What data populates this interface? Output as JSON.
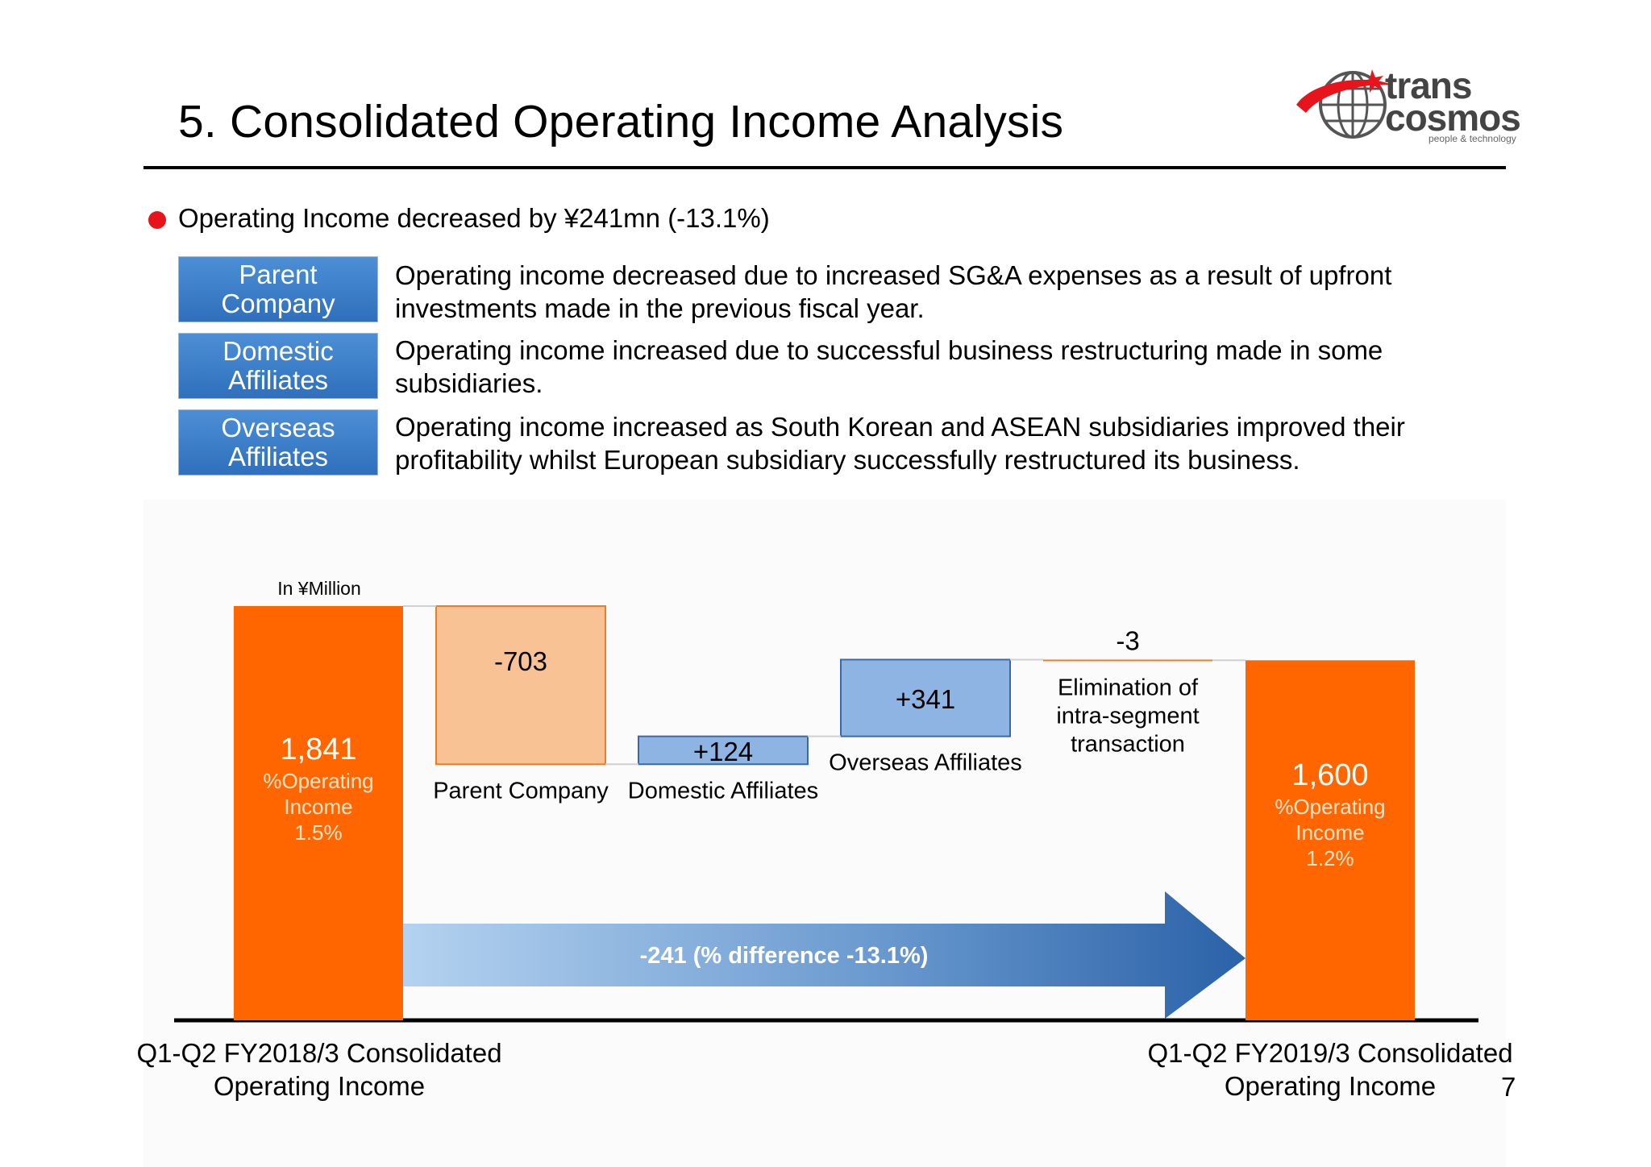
{
  "title": "5. Consolidated Operating Income Analysis",
  "logo": {
    "line1": "trans",
    "line2": "cosmos",
    "tagline": "people & technology"
  },
  "bullet": "Operating Income decreased by ¥241mn (-13.1%)",
  "segments": [
    {
      "label_line1": "Parent",
      "label_line2": "Company",
      "text": "Operating income decreased due to increased SG&A expenses as a result of upfront investments made in the previous fiscal year."
    },
    {
      "label_line1": "Domestic",
      "label_line2": "Affiliates",
      "text": "Operating income increased due to successful business restructuring made in some subsidiaries."
    },
    {
      "label_line1": "Overseas",
      "label_line2": "Affiliates",
      "text": "Operating income increased as South Korean and ASEAN subsidiaries improved their profitability whilst European subsidiary successfully restructured its business."
    }
  ],
  "colors": {
    "total": "#ff6600",
    "decrease": "#f9c295",
    "increase": "#8db4e3",
    "accent_red": "#e8141b",
    "arrow_dark": "#2a62a8",
    "arrow_light": "#b4d2f0"
  },
  "chart_data": {
    "type": "waterfall",
    "unit_label": "In ¥Million",
    "baseline": 0,
    "steps": [
      {
        "key": "start",
        "kind": "total",
        "value": 1841,
        "value_label": "1,841",
        "sub_lines": [
          "%Operating",
          "Income",
          "1.5%"
        ]
      },
      {
        "key": "parent",
        "kind": "delta",
        "value": -703,
        "value_label": "-703",
        "category_lines": [
          "Parent Company"
        ]
      },
      {
        "key": "domestic",
        "kind": "delta",
        "value": 124,
        "value_label": "+124",
        "category_lines": [
          "Domestic Affiliates"
        ]
      },
      {
        "key": "overseas",
        "kind": "delta",
        "value": 341,
        "value_label": "+341",
        "category_lines": [
          "Overseas Affiliates"
        ]
      },
      {
        "key": "elimination",
        "kind": "delta",
        "value": -3,
        "value_label": "-3",
        "category_lines": [
          "Elimination of",
          "intra-segment",
          "transaction"
        ]
      },
      {
        "key": "end",
        "kind": "total",
        "value": 1600,
        "value_label": "1,600",
        "sub_lines": [
          "%Operating",
          "Income",
          "1.2%"
        ]
      }
    ],
    "difference": {
      "value": -241,
      "label": "-241 (% difference -13.1%)"
    },
    "x_axis_labels": {
      "start": [
        "Q1-Q2 FY2018/3 Consolidated",
        "Operating Income"
      ],
      "end": [
        "Q1-Q2 FY2019/3 Consolidated",
        "Operating Income"
      ]
    }
  },
  "page_number": "7"
}
